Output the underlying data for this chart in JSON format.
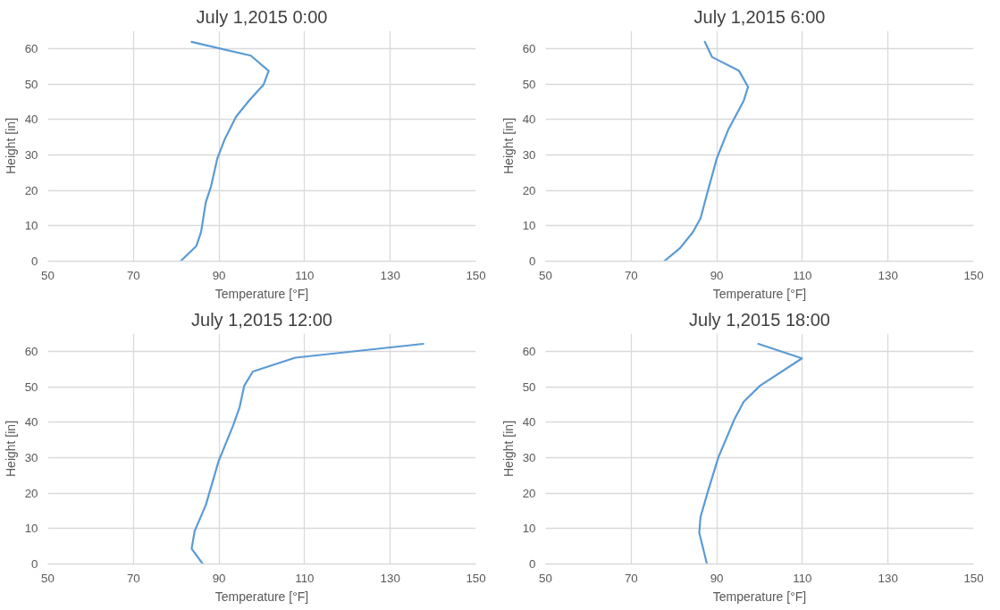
{
  "chart_data": [
    {
      "type": "line",
      "title": "July 1,2015 0:00",
      "xlabel": "Temperature [°F]",
      "ylabel": "Height [in]",
      "xlim": [
        50,
        150
      ],
      "xticks": [
        50,
        70,
        90,
        110,
        130,
        150
      ],
      "ylim": [
        0,
        65
      ],
      "yticks": [
        0,
        10,
        20,
        30,
        40,
        50,
        60
      ],
      "grid": true,
      "series": [
        {
          "color": "#5b9bd5",
          "x": [
            81.0,
            84.7,
            85.8,
            86.9,
            88.1,
            89.6,
            91.4,
            94.0,
            97.0,
            100.4,
            101.6,
            97.4,
            83.6
          ],
          "values": [
            0,
            4.3,
            8.2,
            16.6,
            21,
            29,
            34.6,
            40.8,
            45.3,
            49.8,
            53.7,
            58,
            61.9
          ]
        }
      ]
    },
    {
      "type": "line",
      "title": "July 1,2015 6:00",
      "xlabel": "Temperature [°F]",
      "ylabel": "Height [in]",
      "xlim": [
        50,
        150
      ],
      "xticks": [
        50,
        70,
        90,
        110,
        130,
        150
      ],
      "ylim": [
        0,
        65
      ],
      "yticks": [
        0,
        10,
        20,
        30,
        40,
        50,
        60
      ],
      "grid": true,
      "series": [
        {
          "color": "#5b9bd5",
          "x": [
            77.7,
            81.4,
            84.4,
            86.2,
            87.7,
            90.0,
            92.6,
            96.3,
            97.3,
            95.2,
            88.9,
            87.2
          ],
          "values": [
            0,
            3.7,
            8.2,
            12.1,
            18.9,
            29,
            36.9,
            45.3,
            49.2,
            53.7,
            57.6,
            61.9
          ]
        }
      ]
    },
    {
      "type": "line",
      "title": "July 1,2015 12:00",
      "xlabel": "Temperature [°F]",
      "ylabel": "Height [in]",
      "xlim": [
        50,
        150
      ],
      "xticks": [
        50,
        70,
        90,
        110,
        130,
        150
      ],
      "ylim": [
        0,
        65
      ],
      "yticks": [
        0,
        10,
        20,
        30,
        40,
        50,
        60
      ],
      "grid": true,
      "series": [
        {
          "color": "#5b9bd5",
          "x": [
            86.2,
            83.6,
            84.3,
            86.9,
            89.9,
            93.3,
            94.8,
            95.9,
            97.9,
            107.8,
            137.7
          ],
          "values": [
            0,
            4.3,
            9.3,
            16.6,
            29,
            39.1,
            44.2,
            50.3,
            54.3,
            58.2,
            62.1
          ]
        }
      ]
    },
    {
      "type": "line",
      "title": "July 1,2015 18:00",
      "xlabel": "Temperature [°F]",
      "ylabel": "Height [in]",
      "xlim": [
        50,
        150
      ],
      "xticks": [
        50,
        70,
        90,
        110,
        130,
        150
      ],
      "ylim": [
        0,
        65
      ],
      "yticks": [
        0,
        10,
        20,
        30,
        40,
        50,
        60
      ],
      "grid": true,
      "series": [
        {
          "color": "#5b9bd5",
          "x": [
            87.7,
            85.9,
            86.2,
            88.1,
            90.4,
            94.1,
            96.3,
            100.1,
            109.9,
            99.7
          ],
          "values": [
            0,
            8.8,
            13.3,
            21.2,
            30.2,
            40.8,
            45.8,
            50.3,
            58,
            62.1
          ]
        }
      ]
    }
  ]
}
